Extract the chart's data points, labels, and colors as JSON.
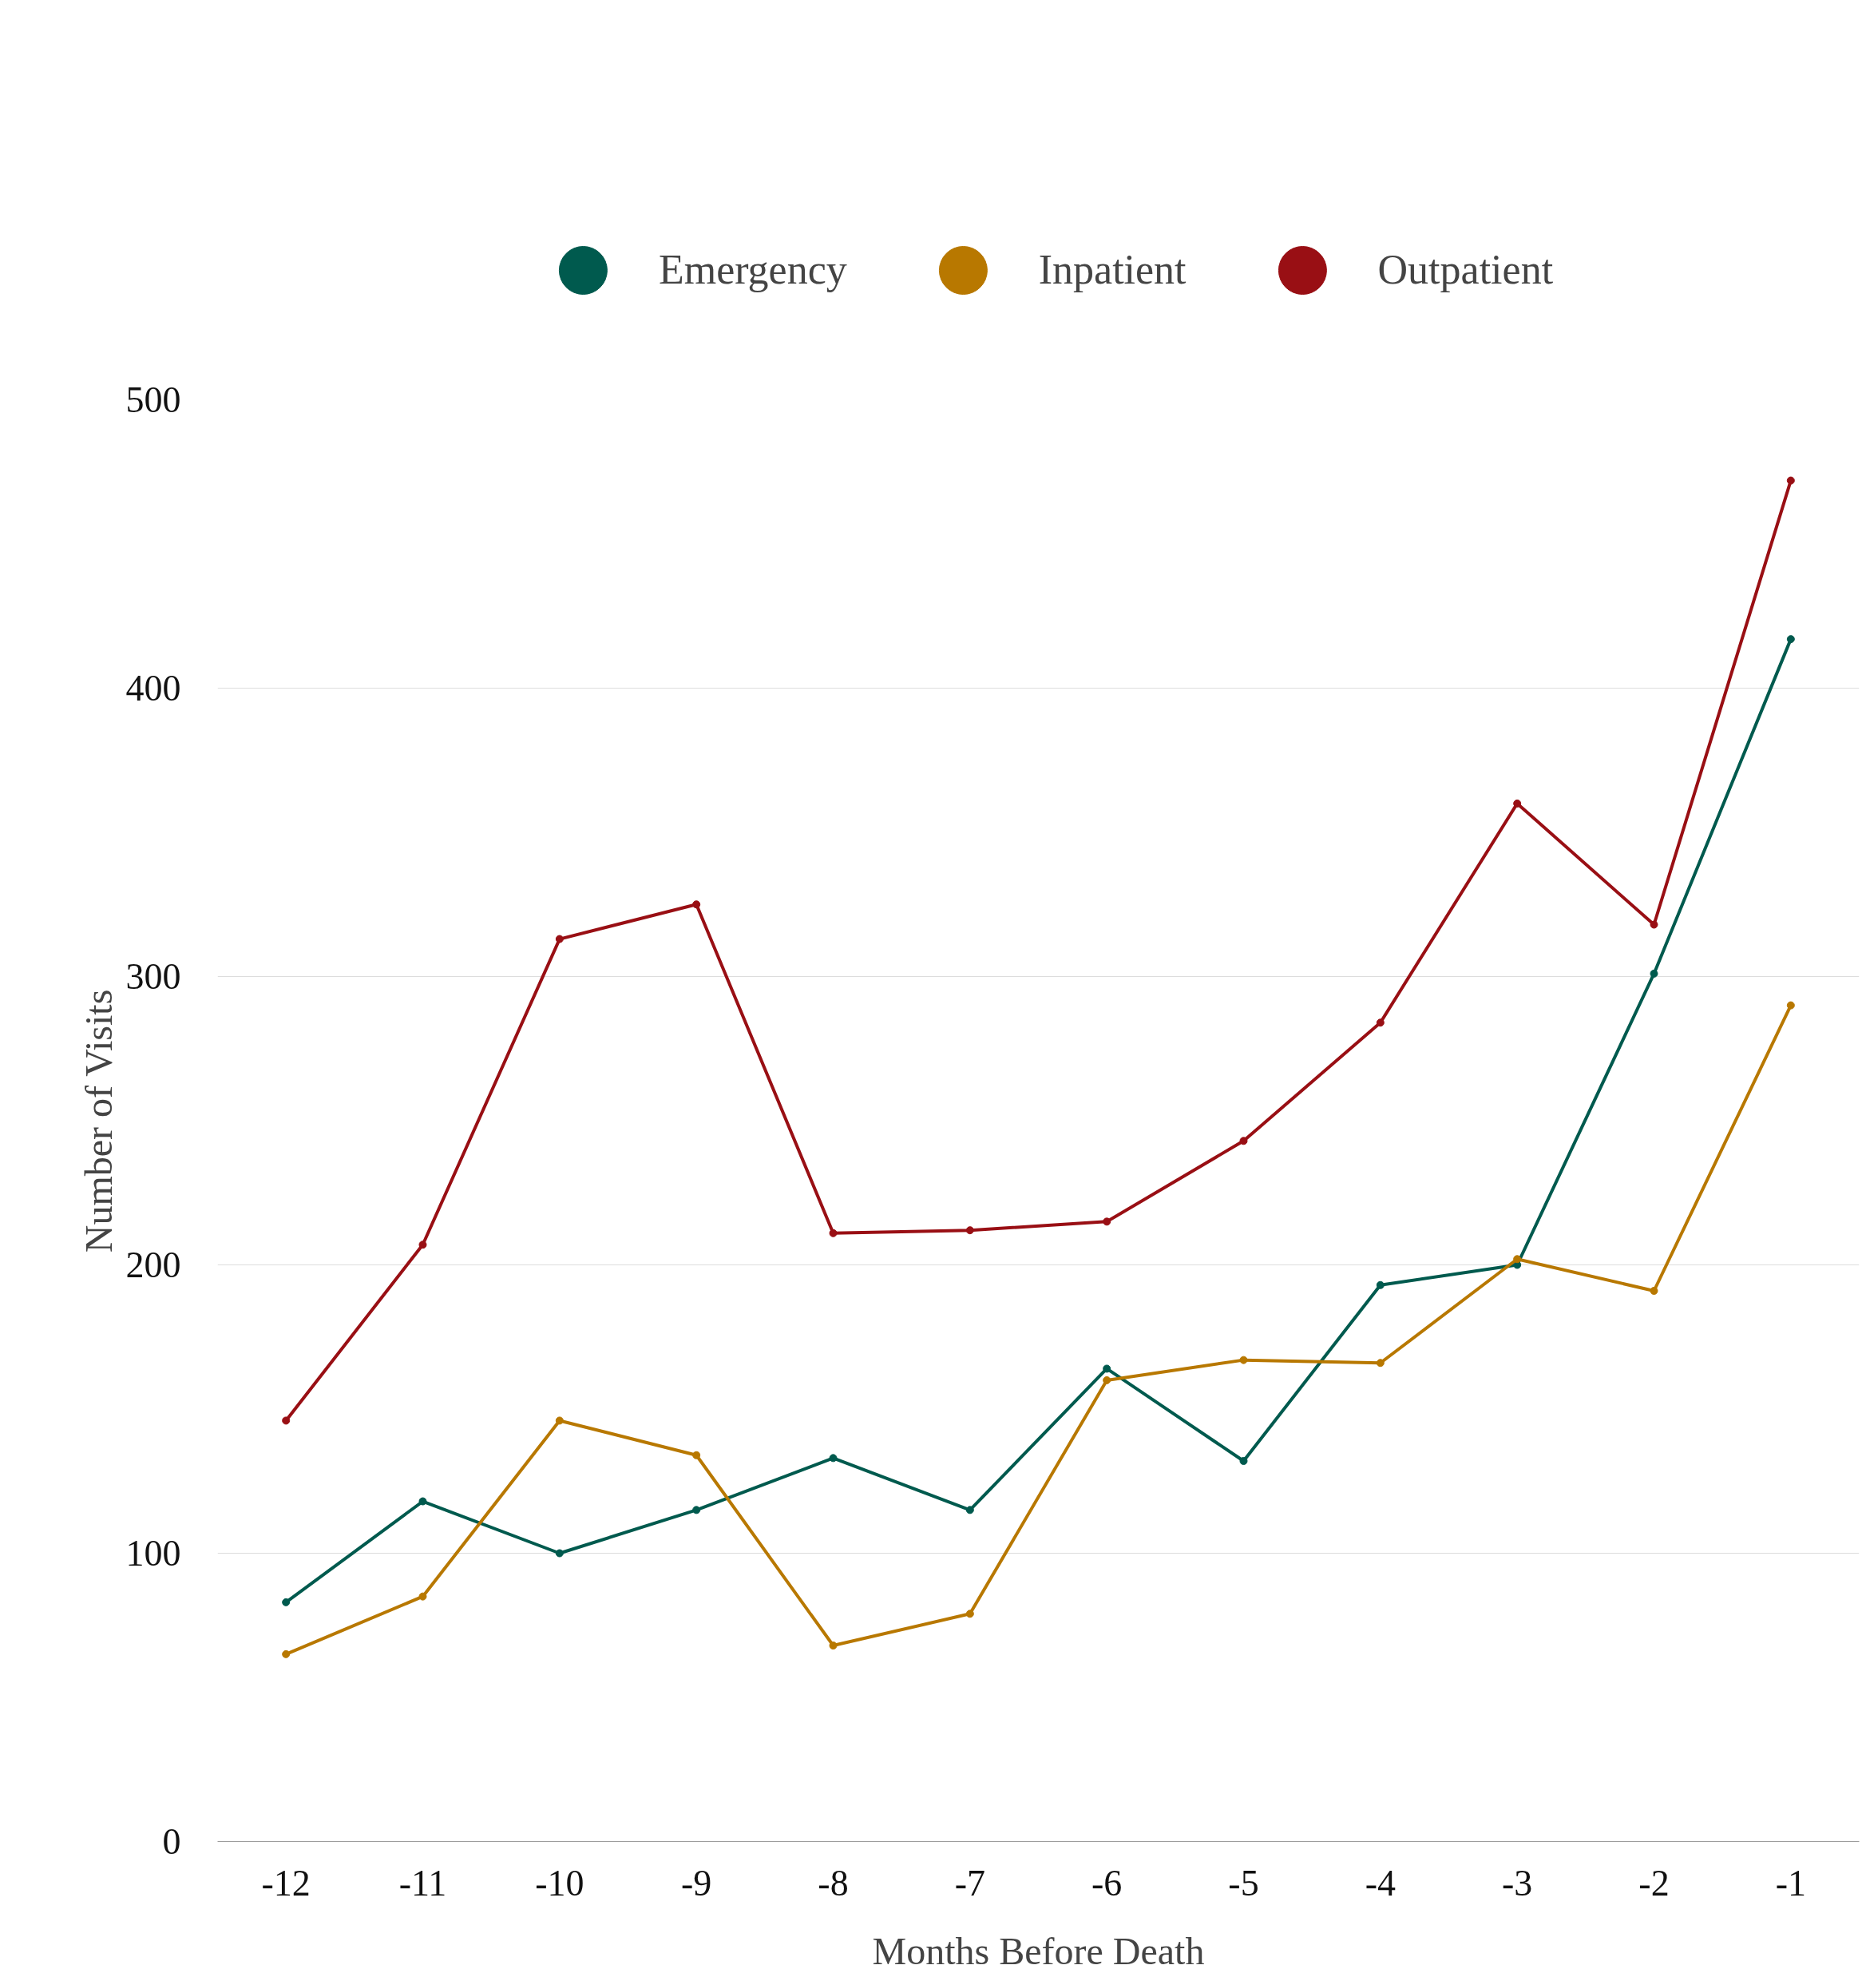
{
  "chart_data": {
    "type": "line",
    "xlabel": "Months Before Death",
    "ylabel": "Number of Visits",
    "x": [
      -12,
      -11,
      -10,
      -9,
      -8,
      -7,
      -6,
      -5,
      -4,
      -3,
      -2,
      -1
    ],
    "series": [
      {
        "name": "Emergency",
        "color": "#005a4e",
        "values": [
          83,
          118,
          100,
          115,
          133,
          115,
          164,
          132,
          193,
          200,
          301,
          417
        ]
      },
      {
        "name": "Inpatient",
        "color": "#b87800",
        "values": [
          65,
          85,
          146,
          134,
          68,
          79,
          160,
          167,
          166,
          202,
          191,
          290
        ]
      },
      {
        "name": "Outpatient",
        "color": "#990f14",
        "values": [
          146,
          207,
          313,
          325,
          211,
          212,
          215,
          243,
          284,
          360,
          318,
          472
        ]
      }
    ],
    "xlim": [
      -12.5,
      -0.5
    ],
    "xticks": [
      -12,
      -11,
      -10,
      -9,
      -8,
      -7,
      -6,
      -5,
      -4,
      -3,
      -2,
      -1
    ],
    "ylim": [
      0,
      500
    ],
    "yticks": [
      0,
      100,
      200,
      300,
      400,
      500
    ],
    "grid": "y",
    "legend": "top",
    "marker": "circle",
    "line_style": "solid"
  }
}
